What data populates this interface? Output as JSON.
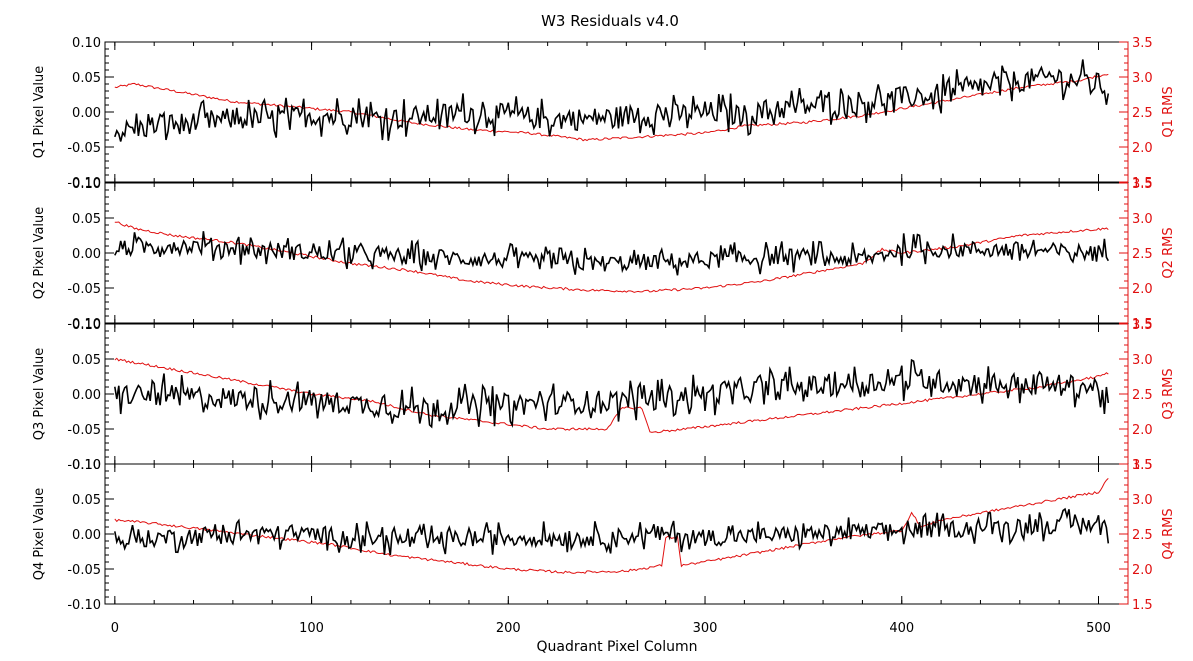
{
  "chart_data": {
    "type": "line",
    "title": "W3 Residuals v4.0",
    "xlabel": "Quadrant Pixel Column",
    "xlim": [
      -5,
      515
    ],
    "xticks": [
      0,
      100,
      200,
      300,
      400,
      500
    ],
    "x_tick_labels": [
      "0",
      "100",
      "200",
      "300",
      "400",
      "500"
    ],
    "series_colors": {
      "pixel_value": "#000000",
      "rms": "#e01010"
    },
    "panels": [
      {
        "name": "Q1",
        "ylabel_left": "Q1 Pixel Value",
        "ylabel_right": "Q1 RMS",
        "ylim_left": [
          -0.1,
          0.1
        ],
        "ylim_right": [
          1.5,
          3.5
        ],
        "left_ticks": [
          "0.10",
          "0.05",
          "0.00",
          "-0.05",
          "-0.10"
        ],
        "right_ticks": [
          "3.5",
          "3.0",
          "2.5",
          "2.0",
          "1.5"
        ],
        "pixel_value": {
          "x": [
            0,
            20,
            40,
            60,
            80,
            100,
            120,
            140,
            160,
            180,
            200,
            220,
            240,
            260,
            280,
            300,
            320,
            340,
            360,
            380,
            400,
            420,
            440,
            460,
            480,
            500,
            505
          ],
          "y": [
            -0.03,
            -0.02,
            -0.015,
            -0.01,
            -0.01,
            -0.005,
            -0.005,
            -0.01,
            -0.005,
            0.0,
            -0.005,
            -0.01,
            -0.01,
            -0.005,
            -0.005,
            0.0,
            -0.005,
            0.005,
            0.01,
            0.015,
            0.02,
            0.025,
            0.035,
            0.045,
            0.05,
            0.04,
            0.03
          ],
          "noise_amplitude": 0.02
        },
        "rms": {
          "x": [
            0,
            10,
            20,
            40,
            60,
            80,
            100,
            120,
            150,
            180,
            210,
            240,
            270,
            300,
            320,
            350,
            380,
            400,
            430,
            460,
            490,
            505
          ],
          "y": [
            2.85,
            2.9,
            2.85,
            2.75,
            2.65,
            2.6,
            2.55,
            2.5,
            2.35,
            2.25,
            2.2,
            2.1,
            2.15,
            2.2,
            2.3,
            2.35,
            2.45,
            2.55,
            2.7,
            2.85,
            2.95,
            3.05
          ]
        }
      },
      {
        "name": "Q2",
        "ylabel_left": "Q2 Pixel Value",
        "ylabel_right": "Q2 RMS",
        "ylim_left": [
          -0.1,
          0.1
        ],
        "ylim_right": [
          1.5,
          3.5
        ],
        "left_ticks": [
          "0.10",
          "0.05",
          "0.00",
          "-0.05",
          "-0.10"
        ],
        "right_ticks": [
          "3.5",
          "3.0",
          "2.5",
          "2.0",
          "1.5"
        ],
        "pixel_value": {
          "x": [
            0,
            20,
            50,
            100,
            150,
            200,
            250,
            300,
            350,
            380,
            400,
            450,
            500,
            505
          ],
          "y": [
            0.005,
            0.01,
            0.01,
            0.0,
            -0.005,
            -0.01,
            -0.015,
            -0.01,
            -0.005,
            -0.01,
            0.005,
            0.005,
            0.0,
            0.0
          ],
          "noise_amplitude": 0.015
        },
        "rms": {
          "x": [
            0,
            10,
            30,
            60,
            90,
            120,
            150,
            180,
            210,
            240,
            270,
            300,
            330,
            360,
            380,
            390,
            400,
            430,
            460,
            490,
            505
          ],
          "y": [
            2.95,
            2.85,
            2.75,
            2.65,
            2.5,
            2.35,
            2.25,
            2.1,
            2.02,
            1.97,
            1.95,
            2.0,
            2.1,
            2.25,
            2.35,
            2.55,
            2.5,
            2.6,
            2.75,
            2.82,
            2.85
          ]
        }
      },
      {
        "name": "Q3",
        "ylabel_left": "Q3 Pixel Value",
        "ylabel_right": "Q3 RMS",
        "ylim_left": [
          -0.1,
          0.1
        ],
        "ylim_right": [
          1.5,
          3.5
        ],
        "left_ticks": [
          "0.10",
          "0.05",
          "0.00",
          "-0.05",
          "-0.10"
        ],
        "right_ticks": [
          "3.5",
          "3.0",
          "2.5",
          "2.0",
          "1.5"
        ],
        "pixel_value": {
          "x": [
            0,
            50,
            100,
            150,
            200,
            250,
            300,
            350,
            400,
            450,
            500,
            505
          ],
          "y": [
            0.0,
            -0.005,
            -0.01,
            -0.02,
            -0.015,
            -0.01,
            0.0,
            0.01,
            0.02,
            0.015,
            0.01,
            -0.01
          ],
          "noise_amplitude": 0.02
        },
        "rms": {
          "x": [
            0,
            20,
            40,
            60,
            100,
            130,
            160,
            190,
            220,
            250,
            258,
            262,
            268,
            272,
            290,
            320,
            350,
            380,
            410,
            440,
            470,
            500,
            505
          ],
          "y": [
            3.0,
            2.9,
            2.8,
            2.7,
            2.5,
            2.4,
            2.2,
            2.1,
            2.0,
            2.0,
            2.3,
            2.3,
            2.3,
            1.95,
            2.0,
            2.1,
            2.2,
            2.3,
            2.4,
            2.5,
            2.6,
            2.75,
            2.8
          ]
        }
      },
      {
        "name": "Q4",
        "ylabel_left": "Q4 Pixel Value",
        "ylabel_right": "Q4 RMS",
        "ylim_left": [
          -0.1,
          0.1
        ],
        "ylim_right": [
          1.5,
          3.5
        ],
        "left_ticks": [
          "0.10",
          "0.05",
          "0.00",
          "-0.05",
          "-0.10"
        ],
        "right_ticks": [
          "3.5",
          "3.0",
          "2.5",
          "2.0",
          "1.5"
        ],
        "pixel_value": {
          "x": [
            0,
            50,
            100,
            150,
            200,
            250,
            280,
            300,
            350,
            400,
            450,
            500,
            505
          ],
          "y": [
            -0.01,
            0.0,
            0.0,
            -0.01,
            -0.005,
            -0.005,
            0.0,
            -0.005,
            0.0,
            0.005,
            0.01,
            0.015,
            0.005
          ],
          "noise_amplitude": 0.015
        },
        "rms": {
          "x": [
            0,
            20,
            50,
            80,
            110,
            140,
            170,
            200,
            230,
            260,
            278,
            280,
            286,
            288,
            310,
            340,
            370,
            400,
            405,
            410,
            420,
            450,
            480,
            500,
            505
          ],
          "y": [
            2.7,
            2.65,
            2.55,
            2.45,
            2.35,
            2.2,
            2.1,
            2.0,
            1.95,
            1.97,
            2.05,
            2.45,
            2.45,
            2.05,
            2.15,
            2.3,
            2.45,
            2.55,
            2.8,
            2.6,
            2.7,
            2.85,
            3.0,
            3.1,
            3.3
          ]
        }
      }
    ]
  }
}
